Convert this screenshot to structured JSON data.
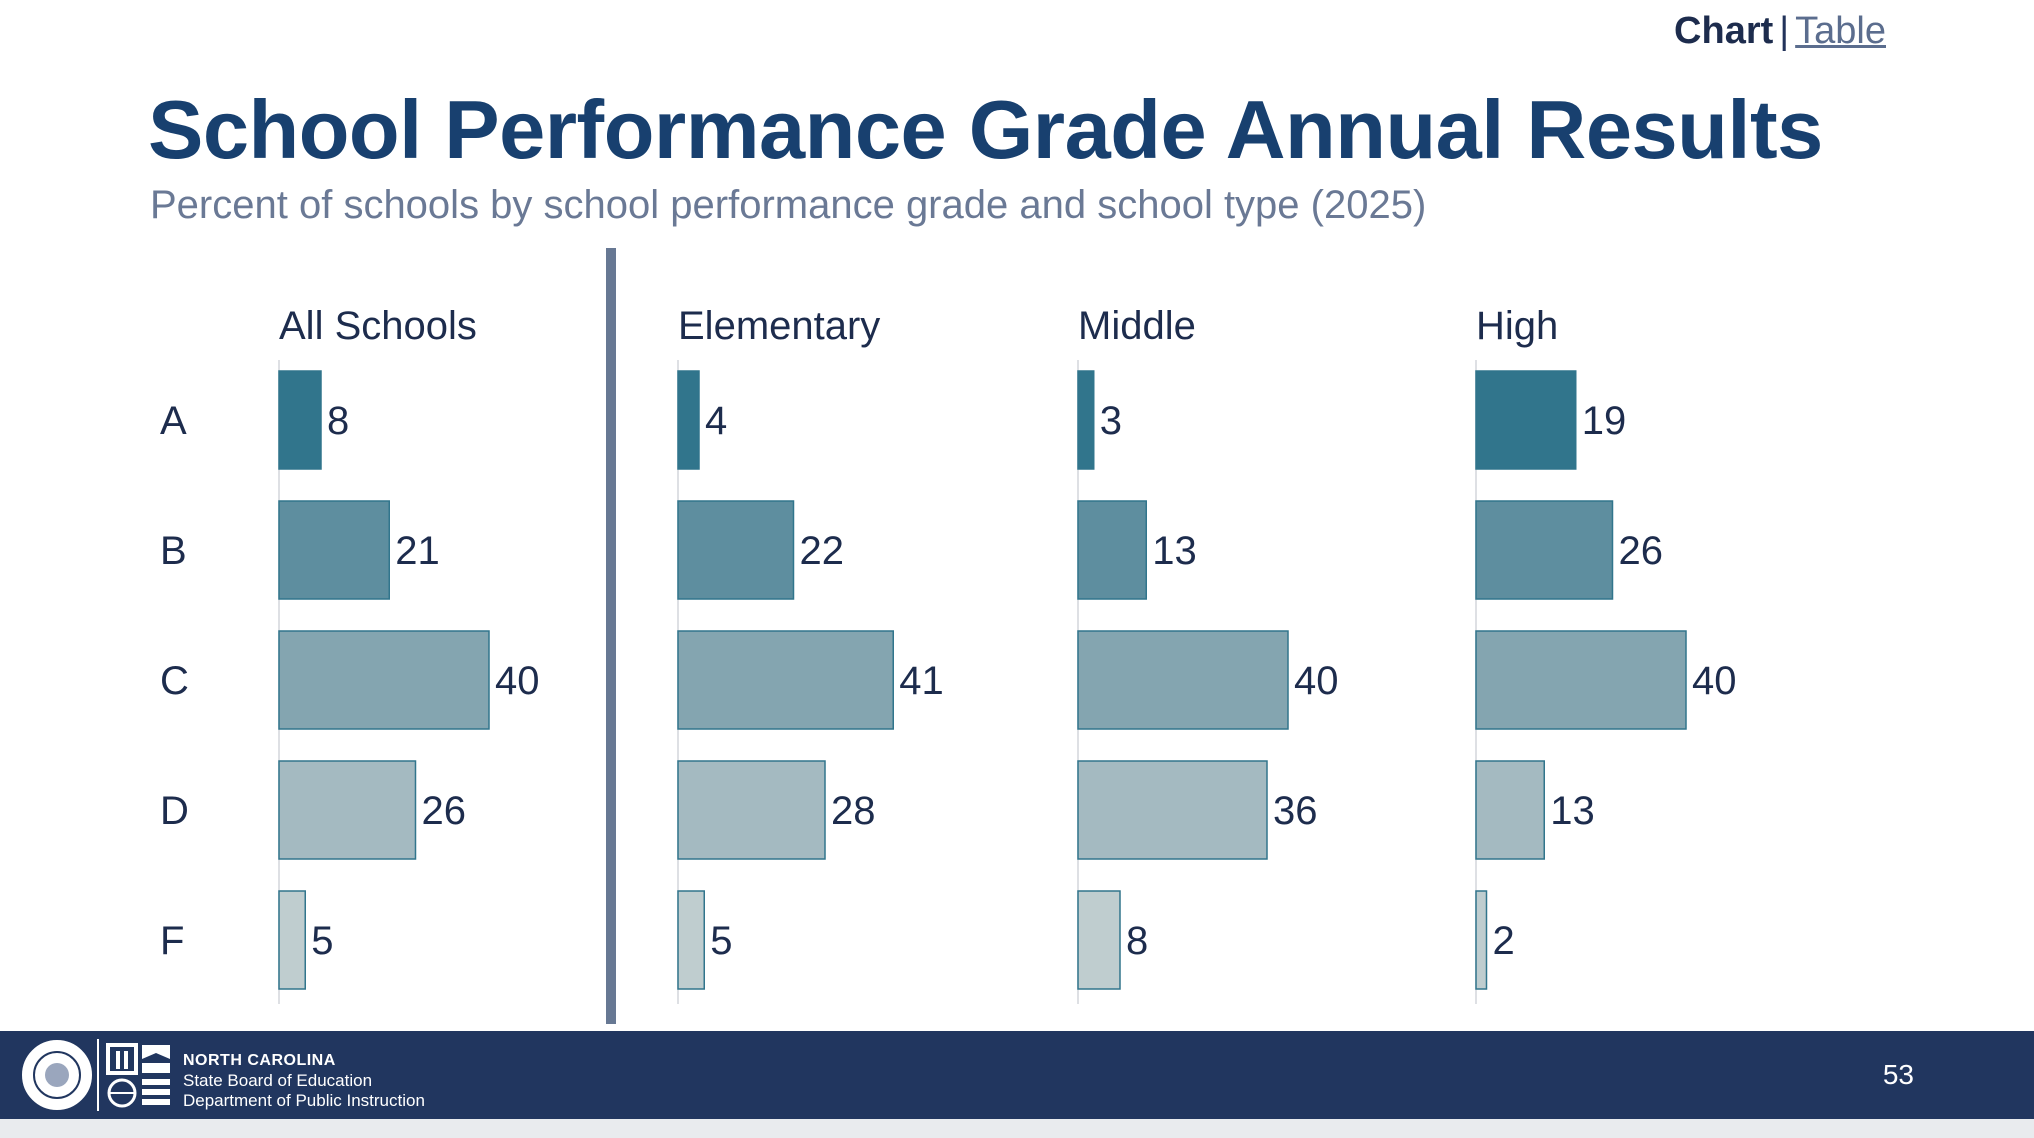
{
  "nav": {
    "chart_label": "Chart",
    "separator": "|",
    "table_label": "Table"
  },
  "header": {
    "title": "School Performance Grade Annual Results",
    "subtitle": "Percent of schools by school performance grade and school type (2025)"
  },
  "chart_data": {
    "type": "bar",
    "orientation": "horizontal",
    "categories": [
      "A",
      "B",
      "C",
      "D",
      "F"
    ],
    "panels": [
      {
        "name": "All Schools",
        "values": [
          8,
          21,
          40,
          26,
          5
        ]
      },
      {
        "name": "Elementary",
        "values": [
          4,
          22,
          41,
          28,
          5
        ]
      },
      {
        "name": "Middle",
        "values": [
          3,
          13,
          40,
          36,
          8
        ]
      },
      {
        "name": "High",
        "values": [
          19,
          26,
          40,
          13,
          2
        ]
      }
    ],
    "category_colors": [
      "#31758c",
      "#5e8e9f",
      "#84a5b0",
      "#a4bac1",
      "#bfcdcf"
    ],
    "xlim": [
      0,
      50
    ],
    "data_labels": true,
    "grid": false
  },
  "footer": {
    "org_line1": "NORTH CAROLINA",
    "org_line2": "State Board of Education",
    "org_line3": "Department of Public Instruction",
    "page_number": "53"
  },
  "colors": {
    "title": "#18406f",
    "footer_bg": "#21365f",
    "divider": "#677893"
  }
}
